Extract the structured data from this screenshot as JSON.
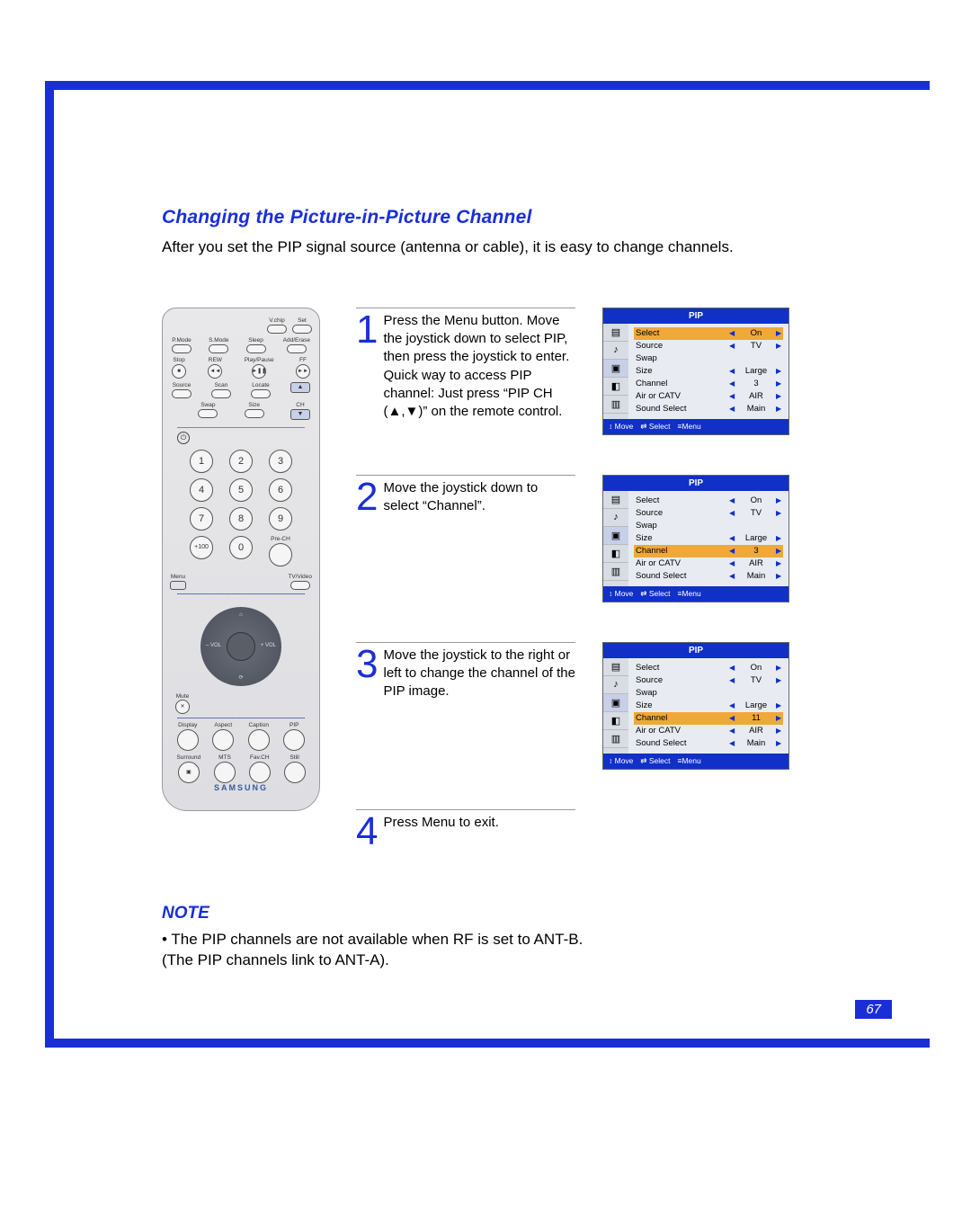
{
  "colors": {
    "frame": "#1a2ed8",
    "page_bg": "#ffffff",
    "heading": "#1a2ed8",
    "osd_title_bg": "#1030c8",
    "osd_highlight": "#f0a838",
    "step_num": "#1a2ed8"
  },
  "heading": "Changing the Picture-in-Picture Channel",
  "intro": "After you set the PIP signal source (antenna or cable), it is easy to change channels.",
  "remote": {
    "brand": "SAMSUNG",
    "top_small": [
      "V.chip",
      "Set"
    ],
    "row_labels_1": [
      "P.Mode",
      "S.Mode",
      "Sleep",
      "Add/Erase"
    ],
    "row_labels_2": [
      "Stop",
      "REW",
      "Play/Pause",
      "FF"
    ],
    "row_labels_3": [
      "Source",
      "Scan",
      "Locate",
      ""
    ],
    "row_labels_4": [
      "",
      "Swap",
      "Size",
      "CH"
    ],
    "numpad": [
      "1",
      "2",
      "3",
      "4",
      "5",
      "6",
      "7",
      "8",
      "9",
      "+100",
      "0",
      ""
    ],
    "pre_ch": "Pre-CH",
    "menu_left": "Menu",
    "menu_right": "TV/Video",
    "dpad": {
      "n": "",
      "s": "",
      "w": "– VOL",
      "e": "+ VOL"
    },
    "mute": "Mute",
    "row_disp": [
      "Display",
      "Aspect",
      "Caption",
      "PIP"
    ],
    "row_snd": [
      "Surround",
      "MTS",
      "Fav.CH",
      "Still"
    ]
  },
  "steps": [
    {
      "num": "1",
      "text": "Press the Menu button. Move the joystick down to select PIP, then press the joystick to enter. Quick way to access PIP channel: Just press “PIP CH (▲,▼)” on the remote control.",
      "osd": {
        "title": "PIP",
        "rows": [
          {
            "label": "Select",
            "val": "On",
            "hl": true
          },
          {
            "label": "Source",
            "val": "TV",
            "hl": false
          },
          {
            "label": "Swap",
            "val": "",
            "hl": false
          },
          {
            "label": "Size",
            "val": "Large",
            "hl": false
          },
          {
            "label": "Channel",
            "val": "3",
            "hl": false
          },
          {
            "label": "Air or CATV",
            "val": "AIR",
            "hl": false
          },
          {
            "label": "Sound Select",
            "val": "Main",
            "hl": false
          }
        ],
        "footer": [
          "↕ Move",
          "⇄ Select",
          "≡Menu"
        ]
      }
    },
    {
      "num": "2",
      "text": "Move the joystick down to select “Channel”.",
      "osd": {
        "title": "PIP",
        "rows": [
          {
            "label": "Select",
            "val": "On",
            "hl": false
          },
          {
            "label": "Source",
            "val": "TV",
            "hl": false
          },
          {
            "label": "Swap",
            "val": "",
            "hl": false
          },
          {
            "label": "Size",
            "val": "Large",
            "hl": false
          },
          {
            "label": "Channel",
            "val": "3",
            "hl": true
          },
          {
            "label": "Air or CATV",
            "val": "AIR",
            "hl": false
          },
          {
            "label": "Sound Select",
            "val": "Main",
            "hl": false
          }
        ],
        "footer": [
          "↕ Move",
          "⇄ Select",
          "≡Menu"
        ]
      }
    },
    {
      "num": "3",
      "text": "Move the joystick to the right or left to change the channel of the PIP image.",
      "osd": {
        "title": "PIP",
        "rows": [
          {
            "label": "Select",
            "val": "On",
            "hl": false
          },
          {
            "label": "Source",
            "val": "TV",
            "hl": false
          },
          {
            "label": "Swap",
            "val": "",
            "hl": false
          },
          {
            "label": "Size",
            "val": "Large",
            "hl": false
          },
          {
            "label": "Channel",
            "val": "11",
            "hl": true
          },
          {
            "label": "Air or CATV",
            "val": "AIR",
            "hl": false
          },
          {
            "label": "Sound Select",
            "val": "Main",
            "hl": false
          }
        ],
        "footer": [
          "↕ Move",
          "⇄ Select",
          "≡Menu"
        ]
      }
    },
    {
      "num": "4",
      "text": "Press Menu to exit.",
      "osd": null
    }
  ],
  "note": {
    "heading": "NOTE",
    "body": "• The PIP channels are not available when RF is set to ANT-B.\n(The PIP channels link to ANT-A)."
  },
  "page_number": "67"
}
